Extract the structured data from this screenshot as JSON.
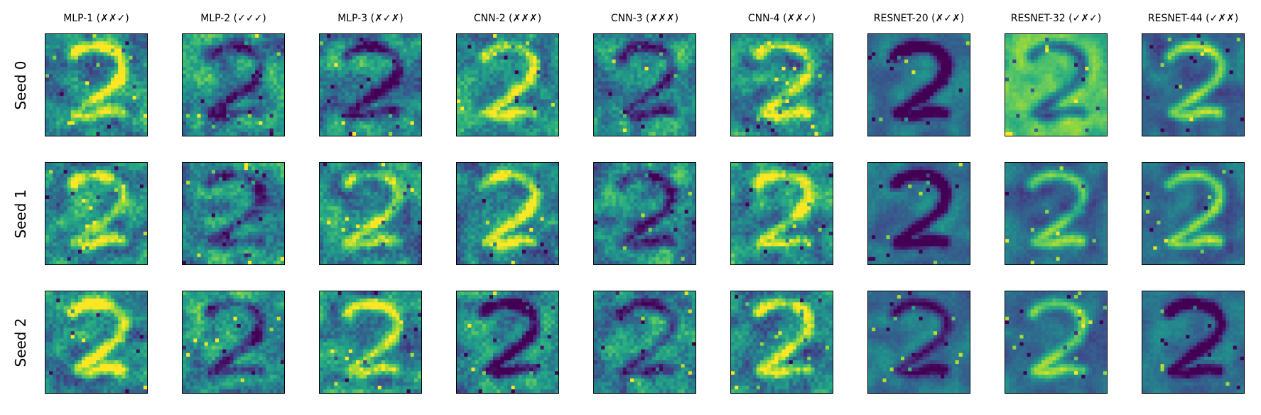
{
  "chart_data": {
    "type": "heatmap",
    "columns": [
      "MLP-1 (✗✗✓)",
      "MLP-2 (✓✓✓)",
      "MLP-3 (✗✓✗)",
      "CNN-2 (✗✗✗)",
      "CNN-3 (✗✗✗)",
      "CNN-4 (✗✗✓)",
      "RESNET-20 (✗✓✗)",
      "RESNET-32 (✓✗✓)",
      "RESNET-44 (✓✗✗)"
    ],
    "rows": [
      "Seed 0",
      "Seed 1",
      "Seed 2"
    ],
    "colormap": "viridis",
    "grid": false
  },
  "colors": {
    "background": "#ffffff",
    "frame": "#000000",
    "viridis_low": "#440154",
    "viridis_mid": "#21918c",
    "viridis_high": "#fde725"
  }
}
